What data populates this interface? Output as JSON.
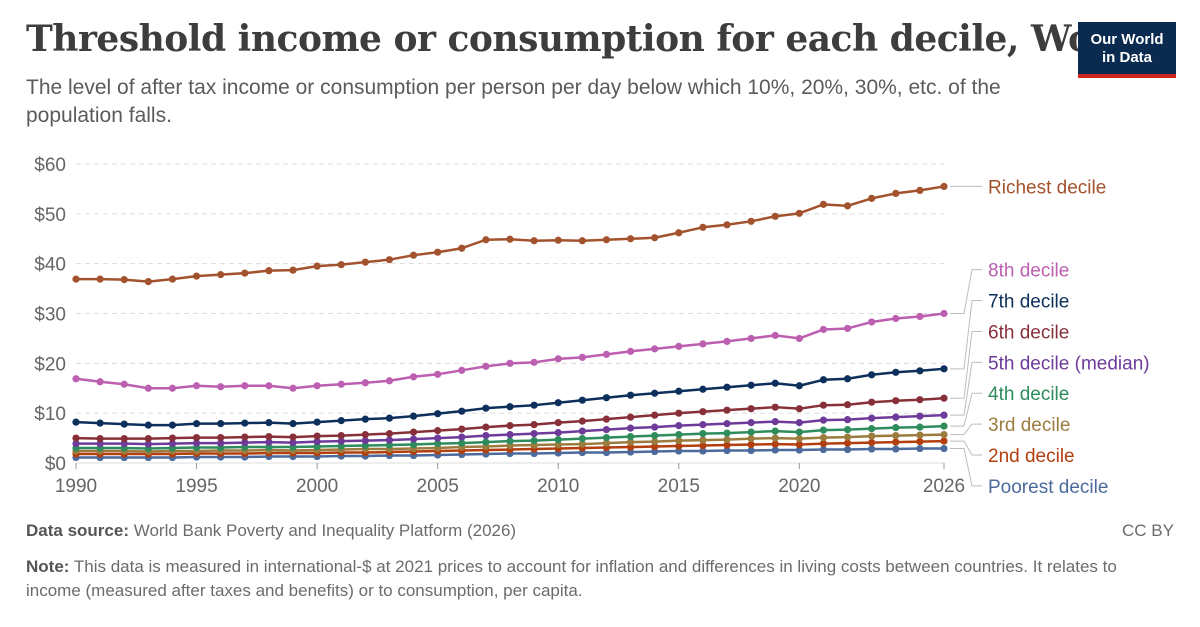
{
  "header": {
    "title": "Threshold income or consumption for each decile, World",
    "subtitle": "The level of after tax income or consumption per person per day below which 10%, 20%, 30%, etc. of the population falls.",
    "logo_line1": "Our World",
    "logo_line2": "in Data"
  },
  "footer": {
    "source_label": "Data source:",
    "source_text": "World Bank Poverty and Inequality Platform (2026)",
    "license": "CC BY",
    "note_label": "Note:",
    "note_text": "This data is measured in international-$ at 2021 prices to account for inflation and differences in living costs between countries. It relates to income (measured after taxes and benefits) or to consumption, per capita."
  },
  "chart_data": {
    "type": "line",
    "title": "Threshold income or consumption for each decile, World",
    "ylim": [
      0,
      60
    ],
    "xlim": [
      1990,
      2026
    ],
    "yticks": [
      0,
      10,
      20,
      30,
      40,
      50,
      60
    ],
    "ytick_labels": [
      "$0",
      "$10",
      "$20",
      "$30",
      "$40",
      "$50",
      "$60"
    ],
    "xticks": [
      1990,
      1995,
      2000,
      2005,
      2010,
      2015,
      2020,
      2026
    ],
    "xtick_labels": [
      "1990",
      "1995",
      "2000",
      "2005",
      "2010",
      "2015",
      "2020",
      "2026"
    ],
    "grid": "horizontal dashed",
    "legend": "right, labels at line ends",
    "x": [
      1990,
      1991,
      1992,
      1993,
      1994,
      1995,
      1996,
      1997,
      1998,
      1999,
      2000,
      2001,
      2002,
      2003,
      2004,
      2005,
      2006,
      2007,
      2008,
      2009,
      2010,
      2011,
      2012,
      2013,
      2014,
      2015,
      2016,
      2017,
      2018,
      2019,
      2020,
      2021,
      2022,
      2023,
      2024,
      2025,
      2026
    ],
    "series": [
      {
        "name": "Richest decile",
        "color": "#a2522c",
        "label_y": 55.5,
        "values": [
          36.9,
          36.9,
          36.8,
          36.4,
          36.9,
          37.5,
          37.8,
          38.1,
          38.6,
          38.7,
          39.5,
          39.8,
          40.3,
          40.8,
          41.7,
          42.3,
          43.1,
          44.8,
          44.9,
          44.6,
          44.7,
          44.6,
          44.8,
          45.0,
          45.2,
          46.2,
          47.3,
          47.8,
          48.5,
          49.5,
          50.1,
          51.9,
          51.6,
          53.1,
          54.1,
          54.7,
          55.5
        ]
      },
      {
        "name": "8th decile",
        "color": "#bc5fb0",
        "label_y": 38.8,
        "values": [
          16.9,
          16.3,
          15.8,
          15.0,
          15.0,
          15.5,
          15.3,
          15.5,
          15.5,
          15.0,
          15.5,
          15.8,
          16.1,
          16.5,
          17.3,
          17.8,
          18.6,
          19.4,
          20.0,
          20.2,
          20.9,
          21.2,
          21.8,
          22.4,
          22.9,
          23.4,
          23.9,
          24.4,
          25.0,
          25.6,
          25.0,
          26.8,
          27.0,
          28.3,
          29.0,
          29.4,
          30.0
        ]
      },
      {
        "name": "7th decile",
        "color": "#0d2f5b",
        "label_y": 32.6,
        "values": [
          8.2,
          8.0,
          7.8,
          7.6,
          7.6,
          7.9,
          7.9,
          8.0,
          8.1,
          7.9,
          8.2,
          8.5,
          8.8,
          9.0,
          9.4,
          9.9,
          10.4,
          11.0,
          11.3,
          11.6,
          12.1,
          12.6,
          13.1,
          13.6,
          14.0,
          14.4,
          14.8,
          15.2,
          15.6,
          16.0,
          15.5,
          16.7,
          16.9,
          17.7,
          18.2,
          18.5,
          18.9
        ]
      },
      {
        "name": "6th decile",
        "color": "#883039",
        "label_y": 26.4,
        "values": [
          5.0,
          4.9,
          4.9,
          4.9,
          5.0,
          5.1,
          5.1,
          5.2,
          5.3,
          5.2,
          5.4,
          5.5,
          5.7,
          5.9,
          6.2,
          6.5,
          6.8,
          7.2,
          7.5,
          7.7,
          8.1,
          8.4,
          8.8,
          9.2,
          9.6,
          10.0,
          10.3,
          10.6,
          10.9,
          11.2,
          10.9,
          11.6,
          11.7,
          12.2,
          12.5,
          12.7,
          13.0
        ]
      },
      {
        "name": "5th decile (median)",
        "color": "#6e3b9a",
        "label_y": 20.2,
        "values": [
          3.9,
          3.9,
          3.9,
          3.8,
          3.9,
          4.0,
          4.0,
          4.1,
          4.2,
          4.1,
          4.3,
          4.4,
          4.5,
          4.6,
          4.8,
          5.0,
          5.2,
          5.5,
          5.7,
          5.9,
          6.1,
          6.4,
          6.7,
          7.0,
          7.2,
          7.5,
          7.7,
          7.9,
          8.1,
          8.3,
          8.1,
          8.6,
          8.7,
          9.0,
          9.2,
          9.4,
          9.6
        ]
      },
      {
        "name": "4th decile",
        "color": "#2f8c5c",
        "label_y": 14.0,
        "values": [
          3.0,
          3.0,
          3.0,
          2.9,
          3.0,
          3.1,
          3.1,
          3.2,
          3.2,
          3.2,
          3.3,
          3.4,
          3.5,
          3.6,
          3.7,
          3.9,
          4.0,
          4.2,
          4.4,
          4.5,
          4.7,
          4.9,
          5.1,
          5.3,
          5.5,
          5.7,
          5.9,
          6.0,
          6.2,
          6.4,
          6.2,
          6.6,
          6.7,
          6.9,
          7.1,
          7.2,
          7.4
        ]
      },
      {
        "name": "3rd decile",
        "color": "#9c7c3e",
        "label_y": 7.8,
        "values": [
          2.4,
          2.4,
          2.4,
          2.3,
          2.4,
          2.4,
          2.5,
          2.5,
          2.6,
          2.5,
          2.6,
          2.7,
          2.8,
          2.8,
          2.9,
          3.0,
          3.2,
          3.3,
          3.5,
          3.6,
          3.7,
          3.8,
          4.0,
          4.2,
          4.3,
          4.5,
          4.6,
          4.7,
          4.9,
          5.0,
          4.9,
          5.1,
          5.2,
          5.4,
          5.5,
          5.6,
          5.7
        ]
      },
      {
        "name": "2nd decile",
        "color": "#b33f0e",
        "label_y": 1.6,
        "values": [
          1.8,
          1.8,
          1.8,
          1.8,
          1.8,
          1.9,
          1.9,
          1.9,
          2.0,
          2.0,
          2.0,
          2.1,
          2.1,
          2.2,
          2.3,
          2.4,
          2.5,
          2.6,
          2.7,
          2.8,
          2.9,
          3.0,
          3.1,
          3.2,
          3.3,
          3.4,
          3.5,
          3.6,
          3.7,
          3.8,
          3.7,
          3.9,
          4.0,
          4.1,
          4.2,
          4.3,
          4.4
        ]
      },
      {
        "name": "Poorest decile",
        "color": "#4c6a9c",
        "label_y": -4.6,
        "values": [
          1.1,
          1.1,
          1.1,
          1.1,
          1.1,
          1.2,
          1.2,
          1.2,
          1.3,
          1.3,
          1.3,
          1.4,
          1.4,
          1.5,
          1.5,
          1.6,
          1.7,
          1.8,
          1.9,
          1.9,
          2.0,
          2.1,
          2.1,
          2.2,
          2.3,
          2.4,
          2.4,
          2.5,
          2.5,
          2.6,
          2.6,
          2.7,
          2.7,
          2.8,
          2.8,
          2.9,
          2.9
        ]
      }
    ]
  }
}
